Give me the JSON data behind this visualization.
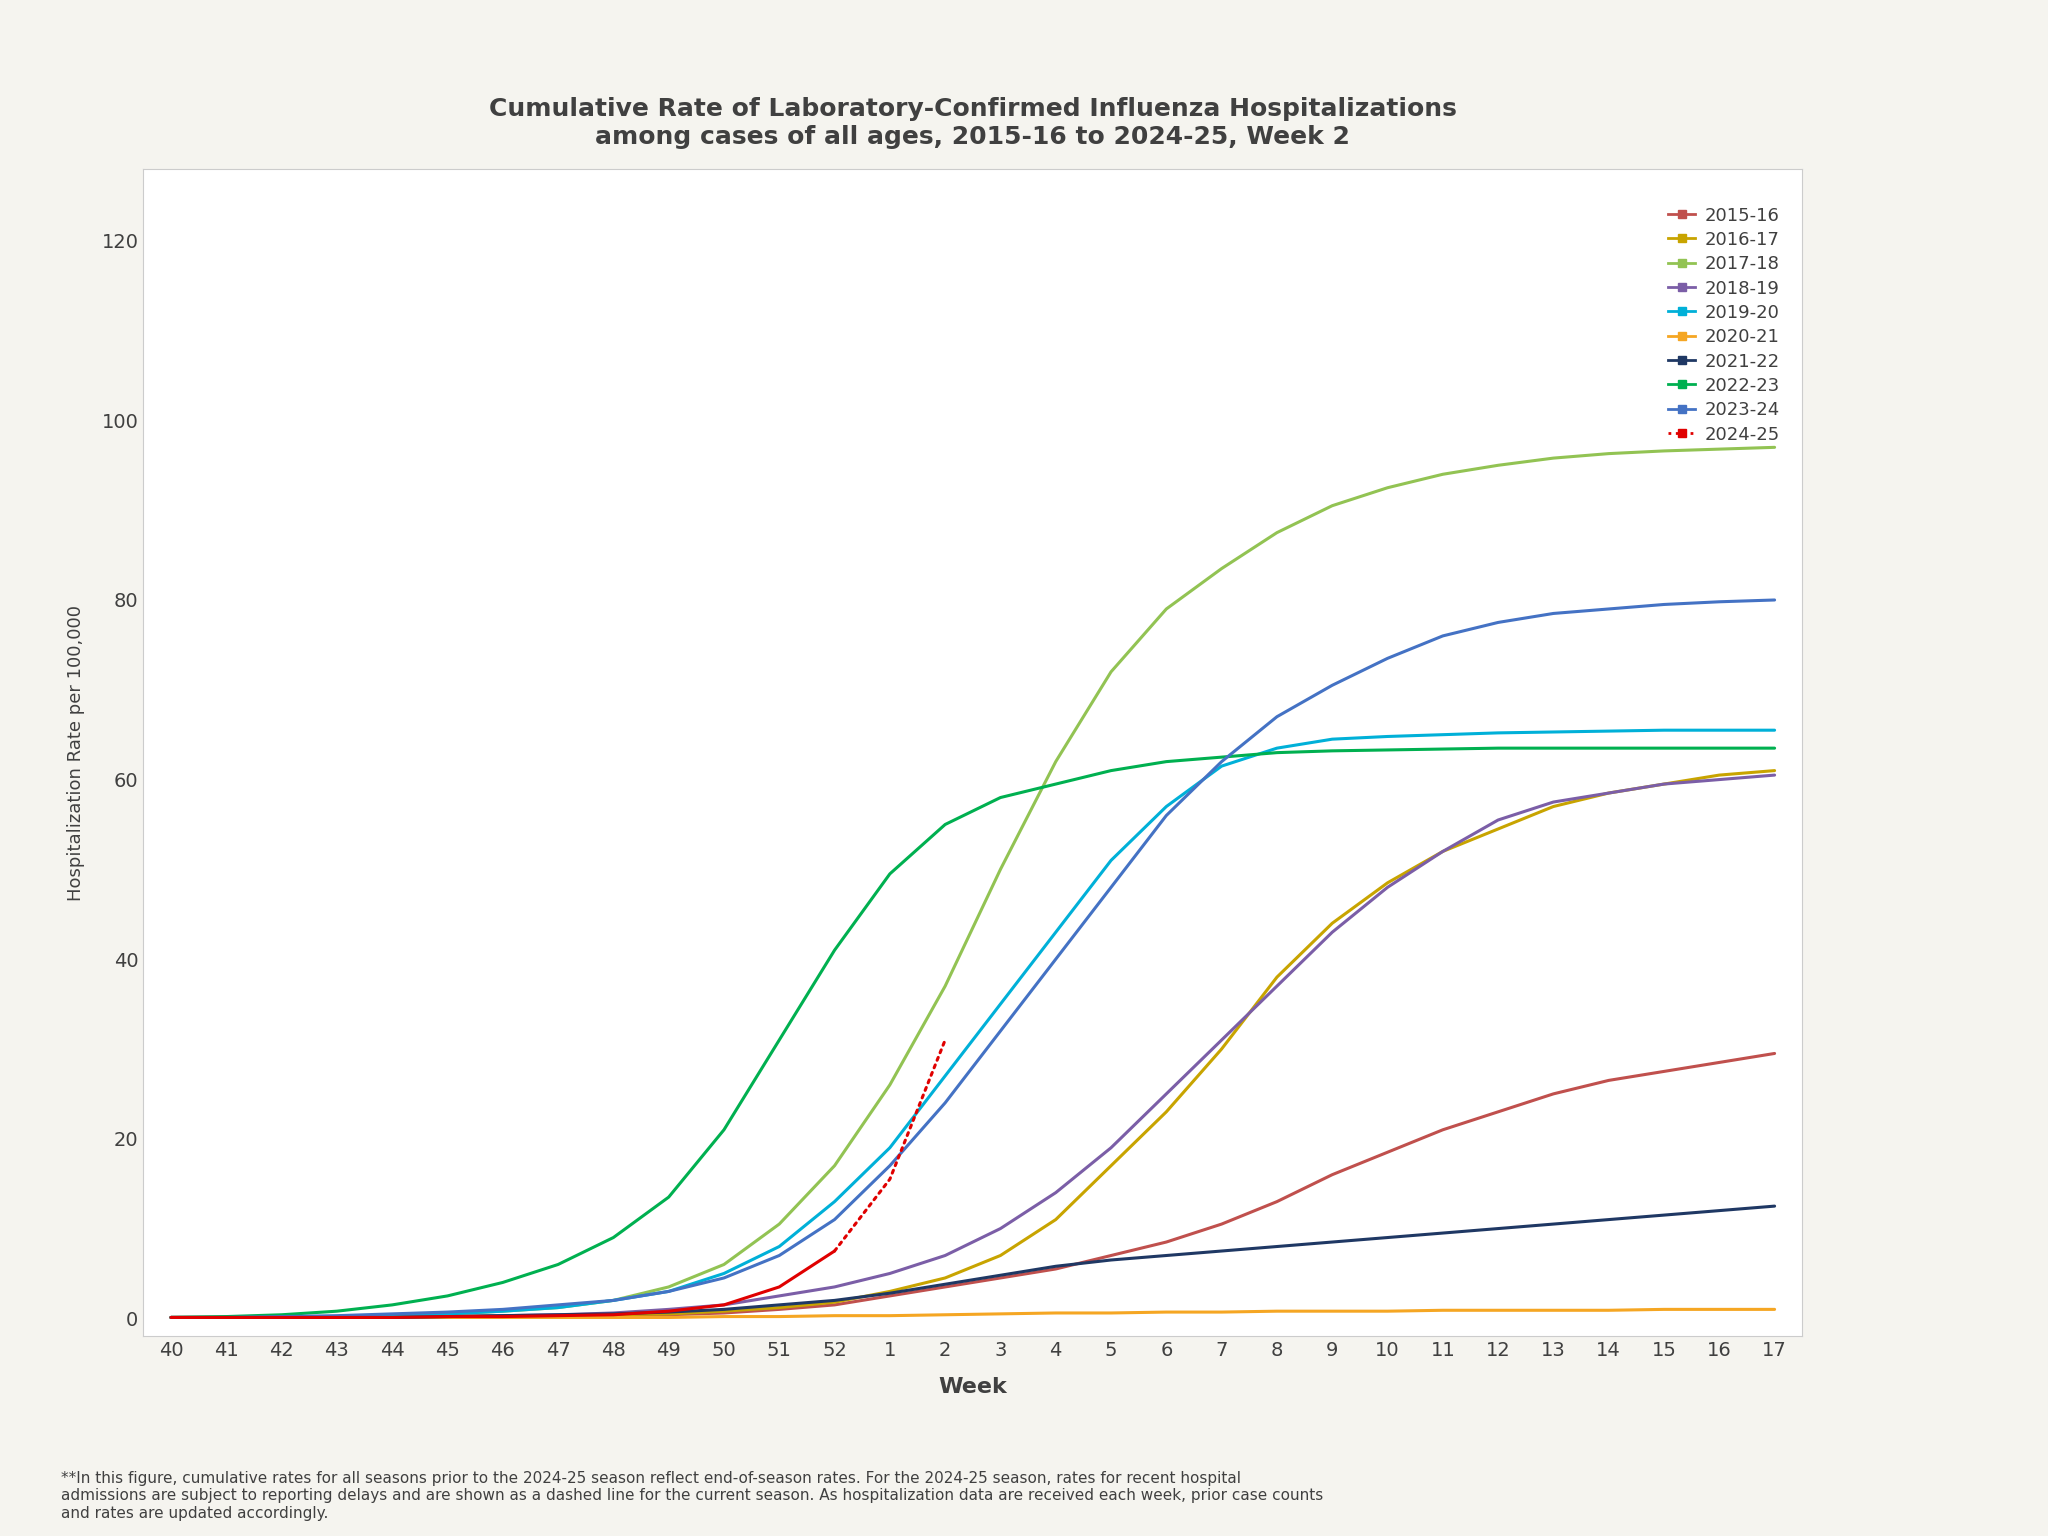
{
  "title": "Cumulative Rate of Laboratory-Confirmed Influenza Hospitalizations\namong cases of all ages, 2015-16 to 2024-25, Week 2",
  "xlabel": "Week",
  "ylabel": "Hospitalization Rate per 100,000",
  "ylim": [
    -2,
    128
  ],
  "yticks": [
    0,
    20,
    40,
    60,
    80,
    100,
    120
  ],
  "fig_bg": "#f5f4ef",
  "plot_bg": "#ffffff",
  "title_color": "#404040",
  "tick_color": "#404040",
  "footnote": "**In this figure, cumulative rates for all seasons prior to the 2024-25 season reflect end-of-season rates. For the 2024-25 season, rates for recent hospital\nadmissions are subject to reporting delays and are shown as a dashed line for the current season. As hospitalization data are received each week, prior case counts\nand rates are updated accordingly.",
  "seasons": {
    "2015-16": {
      "color": "#c0504d",
      "linewidth": 2.2,
      "dashed_from": null,
      "data": [
        0.1,
        0.1,
        0.1,
        0.2,
        0.2,
        0.2,
        0.2,
        0.3,
        0.3,
        0.4,
        0.6,
        1.0,
        1.5,
        2.5,
        3.5,
        4.5,
        5.5,
        7.0,
        8.5,
        10.5,
        13.0,
        16.0,
        18.5,
        21.0,
        23.0,
        25.0,
        26.5,
        27.5,
        28.5,
        29.5
      ]
    },
    "2016-17": {
      "color": "#c8a400",
      "linewidth": 2.2,
      "dashed_from": null,
      "data": [
        0.1,
        0.1,
        0.1,
        0.1,
        0.2,
        0.2,
        0.3,
        0.3,
        0.4,
        0.5,
        0.8,
        1.2,
        1.8,
        3.0,
        4.5,
        7.0,
        11.0,
        17.0,
        23.0,
        30.0,
        38.0,
        44.0,
        48.5,
        52.0,
        54.5,
        57.0,
        58.5,
        59.5,
        60.5,
        61.0
      ]
    },
    "2017-18": {
      "color": "#92c353",
      "linewidth": 2.2,
      "dashed_from": null,
      "data": [
        0.1,
        0.1,
        0.2,
        0.2,
        0.3,
        0.5,
        0.8,
        1.2,
        2.0,
        3.5,
        6.0,
        10.5,
        17.0,
        26.0,
        37.0,
        50.0,
        62.0,
        72.0,
        79.0,
        83.5,
        87.5,
        90.5,
        92.5,
        94.0,
        95.0,
        95.8,
        96.3,
        96.6,
        96.8,
        97.0
      ]
    },
    "2018-19": {
      "color": "#7b5ea7",
      "linewidth": 2.2,
      "dashed_from": null,
      "data": [
        0.1,
        0.1,
        0.1,
        0.1,
        0.2,
        0.2,
        0.3,
        0.4,
        0.6,
        1.0,
        1.5,
        2.5,
        3.5,
        5.0,
        7.0,
        10.0,
        14.0,
        19.0,
        25.0,
        31.0,
        37.0,
        43.0,
        48.0,
        52.0,
        55.5,
        57.5,
        58.5,
        59.5,
        60.0,
        60.5
      ]
    },
    "2019-20": {
      "color": "#00b0d8",
      "linewidth": 2.2,
      "dashed_from": null,
      "data": [
        0.1,
        0.1,
        0.1,
        0.2,
        0.3,
        0.5,
        0.8,
        1.2,
        2.0,
        3.0,
        5.0,
        8.0,
        13.0,
        19.0,
        27.0,
        35.0,
        43.0,
        51.0,
        57.0,
        61.5,
        63.5,
        64.5,
        64.8,
        65.0,
        65.2,
        65.3,
        65.4,
        65.5,
        65.5,
        65.5
      ]
    },
    "2020-21": {
      "color": "#f5a623",
      "linewidth": 2.2,
      "dashed_from": null,
      "data": [
        0.1,
        0.1,
        0.1,
        0.1,
        0.1,
        0.1,
        0.1,
        0.1,
        0.1,
        0.1,
        0.2,
        0.2,
        0.3,
        0.3,
        0.4,
        0.5,
        0.6,
        0.6,
        0.7,
        0.7,
        0.8,
        0.8,
        0.8,
        0.9,
        0.9,
        0.9,
        0.9,
        1.0,
        1.0,
        1.0
      ]
    },
    "2021-22": {
      "color": "#1f3864",
      "linewidth": 2.2,
      "dashed_from": null,
      "data": [
        0.1,
        0.1,
        0.1,
        0.1,
        0.1,
        0.2,
        0.3,
        0.4,
        0.5,
        0.7,
        1.0,
        1.5,
        2.0,
        2.8,
        3.8,
        4.8,
        5.8,
        6.5,
        7.0,
        7.5,
        8.0,
        8.5,
        9.0,
        9.5,
        10.0,
        10.5,
        11.0,
        11.5,
        12.0,
        12.5
      ]
    },
    "2022-23": {
      "color": "#00b050",
      "linewidth": 2.2,
      "dashed_from": null,
      "data": [
        0.1,
        0.2,
        0.4,
        0.8,
        1.5,
        2.5,
        4.0,
        6.0,
        9.0,
        13.5,
        21.0,
        31.0,
        41.0,
        49.5,
        55.0,
        58.0,
        59.5,
        61.0,
        62.0,
        62.5,
        63.0,
        63.2,
        63.3,
        63.4,
        63.5,
        63.5,
        63.5,
        63.5,
        63.5,
        63.5
      ]
    },
    "2023-24": {
      "color": "#4472c4",
      "linewidth": 2.2,
      "dashed_from": null,
      "data": [
        0.1,
        0.1,
        0.2,
        0.3,
        0.5,
        0.7,
        1.0,
        1.5,
        2.0,
        3.0,
        4.5,
        7.0,
        11.0,
        17.0,
        24.0,
        32.0,
        40.0,
        48.0,
        56.0,
        62.0,
        67.0,
        70.5,
        73.5,
        76.0,
        77.5,
        78.5,
        79.0,
        79.5,
        79.8,
        80.0
      ]
    },
    "2024-25": {
      "color": "#e00000",
      "linewidth": 2.2,
      "dashed_from": 13,
      "data": [
        0.1,
        0.1,
        0.1,
        0.1,
        0.1,
        0.2,
        0.2,
        0.3,
        0.4,
        0.8,
        1.5,
        3.5,
        7.5,
        15.5,
        31.0,
        null,
        null,
        null,
        null,
        null,
        null,
        null,
        null,
        null,
        null,
        null,
        null,
        null,
        null,
        null
      ]
    }
  },
  "weeks": [
    40,
    41,
    42,
    43,
    44,
    45,
    46,
    47,
    48,
    49,
    50,
    51,
    52,
    1,
    2,
    3,
    4,
    5,
    6,
    7,
    8,
    9,
    10,
    11,
    12,
    13,
    14,
    15,
    16,
    17
  ],
  "seasons_order": [
    "2015-16",
    "2016-17",
    "2017-18",
    "2018-19",
    "2019-20",
    "2020-21",
    "2021-22",
    "2022-23",
    "2023-24",
    "2024-25"
  ]
}
